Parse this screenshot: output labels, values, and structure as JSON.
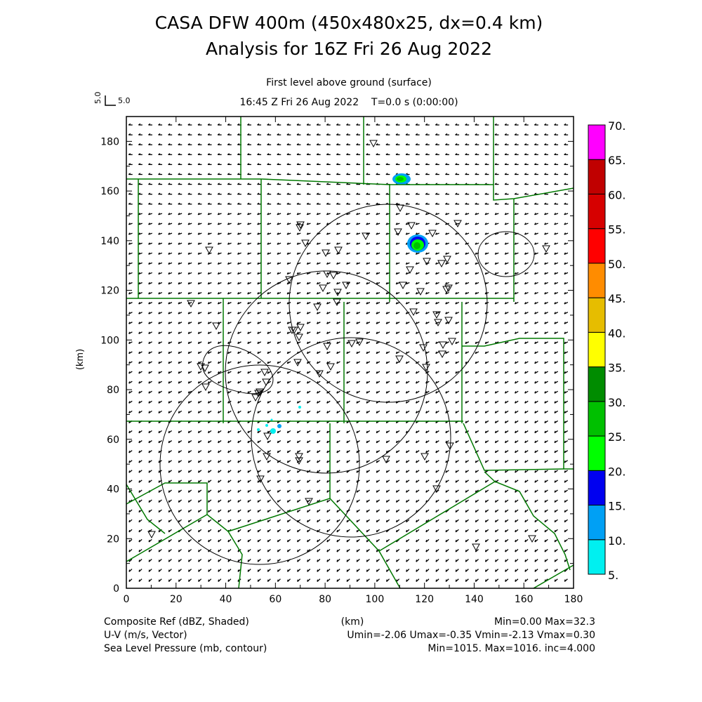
{
  "title": {
    "line1": "CASA DFW 400m (450x480x25, dx=0.4 km)",
    "line2": "Analysis for 16Z Fri 26 Aug 2022"
  },
  "subtitle": {
    "level": "First level above ground (surface)",
    "time": "16:45 Z Fri 26 Aug 2022    T=0.0 s (0:00:00)"
  },
  "vector_scale": {
    "vertical_label": "5.0",
    "horizontal_label": "5.0"
  },
  "axes": {
    "x_label": "(km)",
    "y_label": "(km)",
    "x_ticks": [
      "0",
      "20",
      "40",
      "60",
      "80",
      "100",
      "120",
      "140",
      "160",
      "180"
    ],
    "y_ticks": [
      "0",
      "20",
      "40",
      "60",
      "80",
      "100",
      "120",
      "140",
      "160",
      "180"
    ],
    "x_range_km": [
      0,
      180
    ],
    "y_range_km": [
      0,
      190
    ]
  },
  "colorbar": {
    "labels": [
      "5.",
      "10.",
      "15.",
      "20.",
      "25.",
      "30.",
      "35.",
      "40.",
      "45.",
      "50.",
      "55.",
      "60.",
      "65.",
      "70."
    ],
    "colors": [
      "#00f0f0",
      "#00a0f5",
      "#0000f0",
      "#00ff00",
      "#00c000",
      "#008c00",
      "#ffff00",
      "#e6bd00",
      "#ff8c00",
      "#ff0000",
      "#d60000",
      "#c00000",
      "#ff00ff"
    ]
  },
  "footer": {
    "field1_name": "Composite Ref (dBZ, Shaded)",
    "field1_stats": "Min=0.00 Max=32.3",
    "field2_name": "U-V (m/s, Vector)",
    "field2_stats": "Umin=-2.06 Umax=-0.35 Vmin=-2.13 Vmax=0.30",
    "field3_name": "Sea Level Pressure (mb, contour)",
    "field3_stats": "Min=1015. Max=1016. inc=4.000",
    "x_unit": "(km)"
  },
  "colors": {
    "boundaries": "#007800",
    "contours": "#000000"
  }
}
